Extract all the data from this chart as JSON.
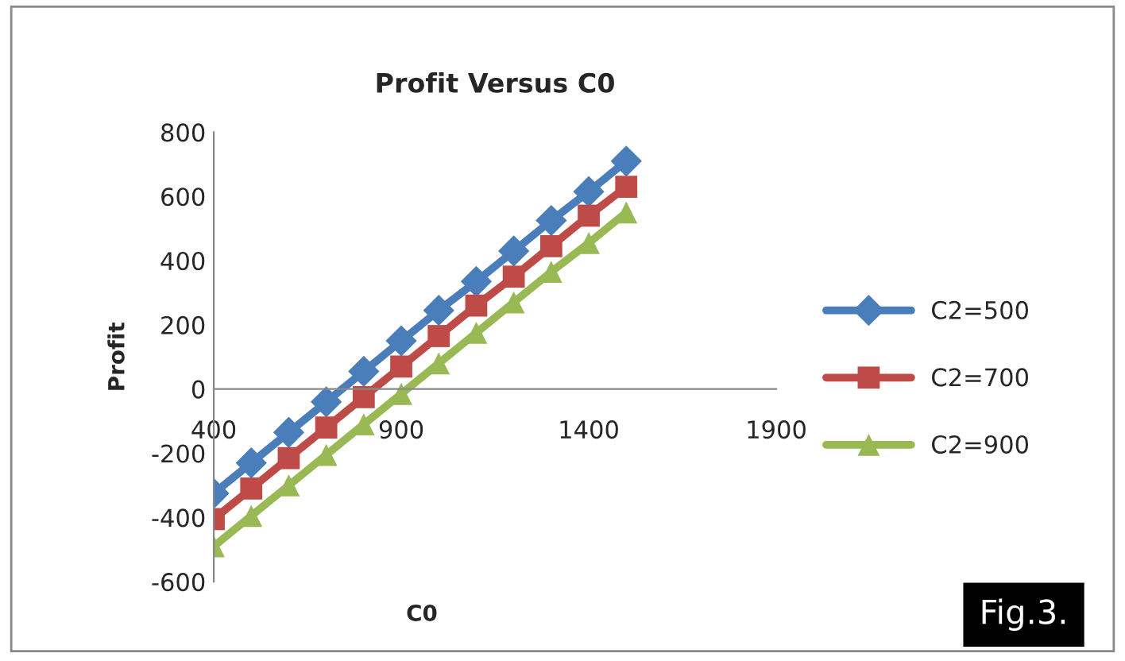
{
  "chart_data": {
    "type": "line",
    "title": "Profit Versus C0",
    "xlabel": "C0",
    "ylabel": "Profit",
    "x": [
      400,
      500,
      600,
      700,
      800,
      900,
      1000,
      1100,
      1200,
      1300,
      1400,
      1500
    ],
    "series": [
      {
        "name": "C2=500",
        "color": "#4a7ebb",
        "marker": "diamond",
        "values": [
          -325,
          -230,
          -135,
          -40,
          55,
          150,
          245,
          335,
          430,
          525,
          615,
          710
        ]
      },
      {
        "name": "C2=700",
        "color": "#be4b48",
        "marker": "square",
        "values": [
          -405,
          -310,
          -215,
          -120,
          -25,
          70,
          165,
          260,
          350,
          445,
          540,
          630
        ]
      },
      {
        "name": "C2=900",
        "color": "#98b954",
        "marker": "triangle",
        "values": [
          -490,
          -395,
          -300,
          -205,
          -110,
          -15,
          80,
          175,
          270,
          365,
          455,
          550
        ]
      }
    ],
    "xlim": [
      400,
      1900
    ],
    "xticks": [
      400,
      900,
      1400,
      1900
    ],
    "ylim": [
      -600,
      800
    ],
    "yticks": [
      -600,
      -400,
      -200,
      0,
      200,
      400,
      600,
      800
    ],
    "grid": false,
    "legend": "right",
    "line_style": "solid",
    "annotations": [
      "Fig.3."
    ]
  }
}
